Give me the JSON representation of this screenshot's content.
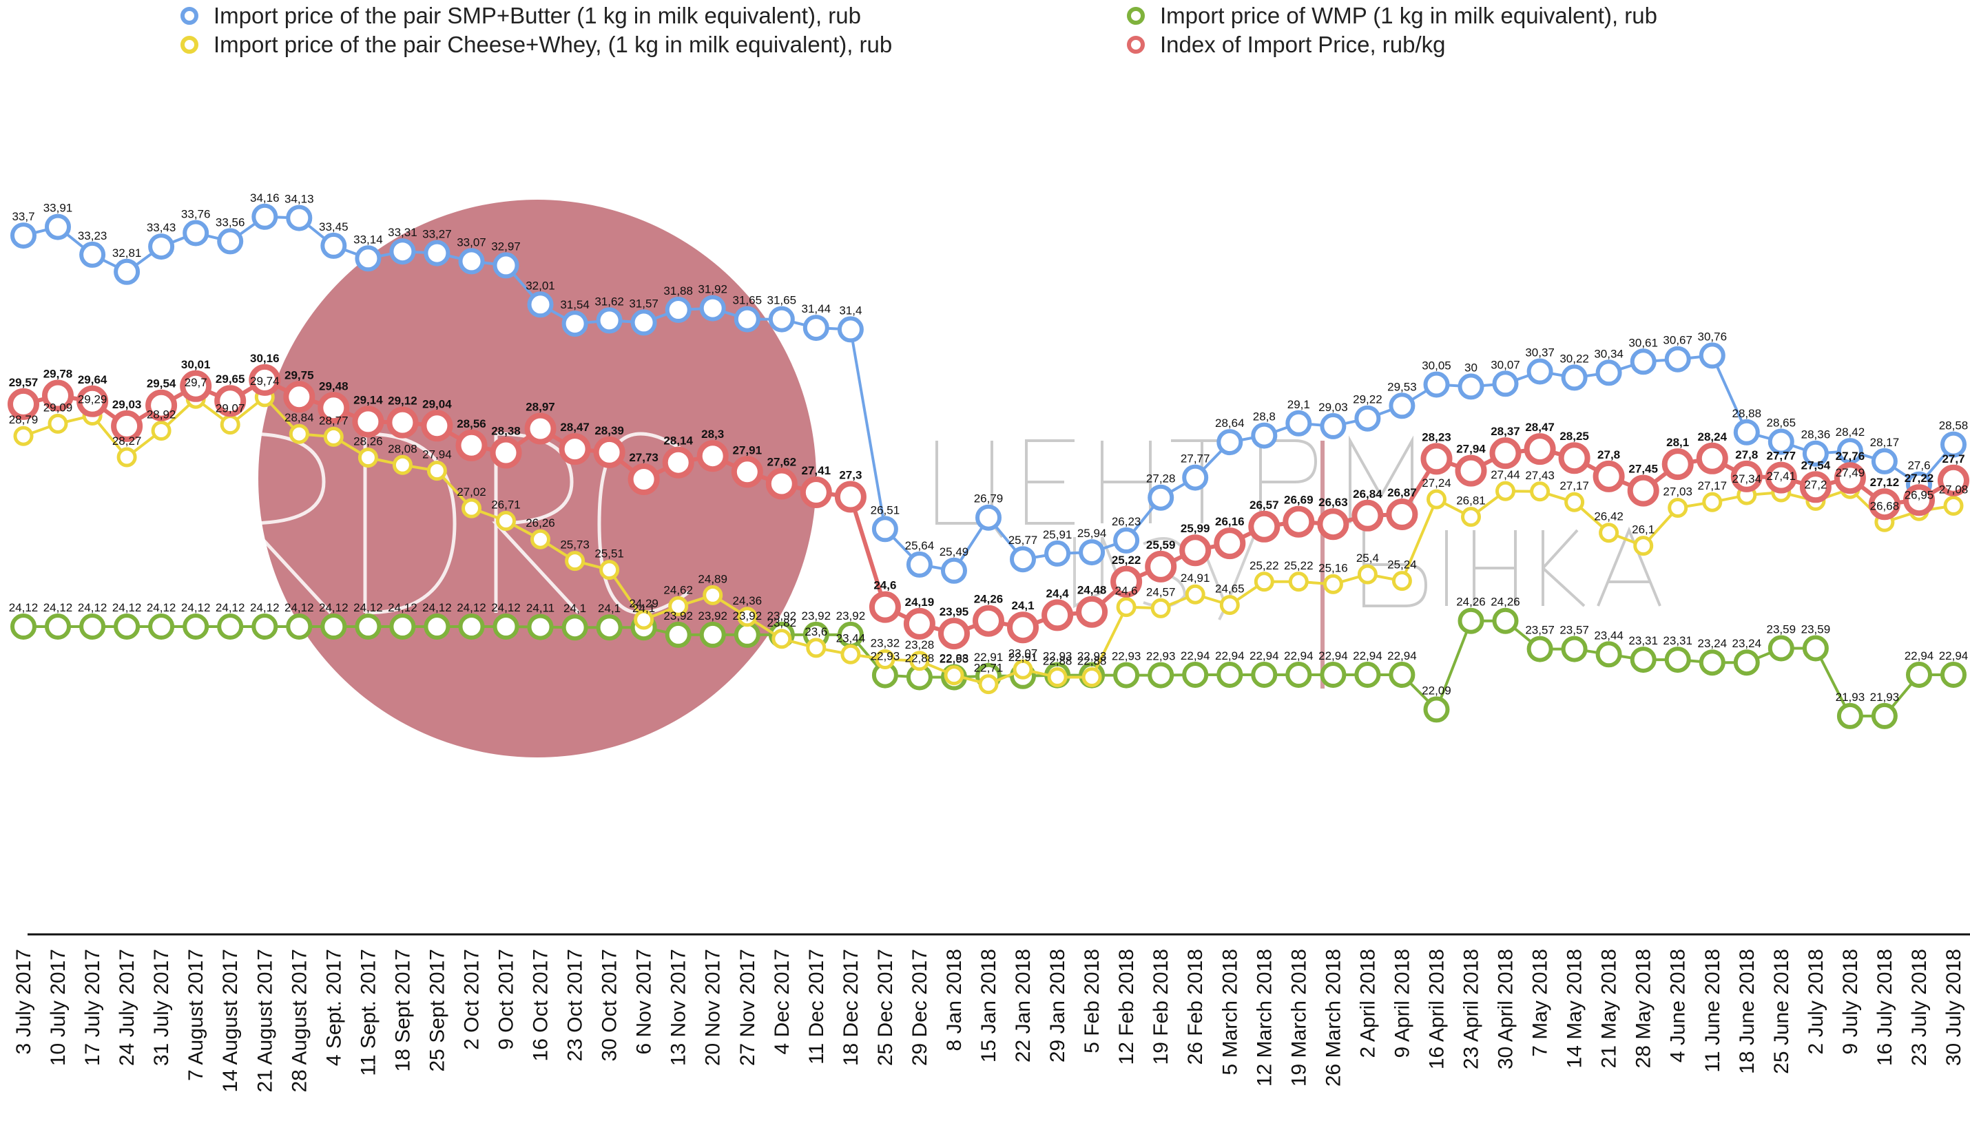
{
  "chart_data": {
    "type": "line",
    "legend": [
      {
        "key": "smp",
        "label": "Import price of the pair SMP+Butter (1 kg in milk equivalent), rub"
      },
      {
        "key": "cheese",
        "label": "Import price of the pair Cheese+Whey,  (1 kg in milk equivalent), rub"
      },
      {
        "key": "wmp",
        "label": "Import price of WMP (1 kg in milk equivalent), rub"
      },
      {
        "key": "index",
        "label": "Index of Import Price, rub/kg"
      }
    ],
    "legend_position": "top",
    "colors": {
      "smp": "#6fa3e8",
      "cheese": "#ecd63b",
      "wmp": "#7fb23c",
      "index": "#e06b6b"
    },
    "x": [
      "3 July 2017",
      "10 July 2017",
      "17 July 2017",
      "24 July 2017",
      "31 July 2017",
      "7 August 2017",
      "14 August 2017",
      "21 August 2017",
      "28 August 2017",
      "4 Sept. 2017",
      "11 Sept. 2017",
      "18 Sept 2017",
      "25 Sept 2017",
      "2 Oct 2017",
      "9 Oct 2017",
      "16 Oct 2017",
      "23 Oct 2017",
      "30 Oct 2017",
      "6 Nov 2017",
      "13 Nov 2017",
      "20 Nov 2017",
      "27 Nov 2017",
      "4 Dec 2017",
      "11 Dec 2017",
      "18 Dec 2017",
      "25 Dec 2017",
      "29 Dec 2017",
      "8 Jan 2018",
      "15 Jan 2018",
      "22 Jan 2018",
      "29 Jan 2018",
      "5 Feb 2018",
      "12 Feb 2018",
      "19 Feb 2018",
      "26 Feb 2018",
      "5 March 2018",
      "12 March 2018",
      "19 March 2018",
      "26 March 2018",
      "2 April 2018",
      "9 April 2018",
      "16 April 2018",
      "23 April 2018",
      "30 April 2018",
      "7 May 2018",
      "14 May 2018",
      "21 May 2018",
      "28 May 2018",
      "4 June 2018",
      "11 June 2018",
      "18 June 2018",
      "25 June 2018",
      "2 July 2018",
      "9 July 2018",
      "16 July 2018",
      "23 July 2018",
      "30 July 2018"
    ],
    "series": [
      {
        "key": "smp",
        "name": "Import price of the pair SMP+Butter (1 kg in milk equivalent), rub",
        "values": [
          33.7,
          33.91,
          33.23,
          32.81,
          33.43,
          33.76,
          33.56,
          34.16,
          34.13,
          33.45,
          33.14,
          33.31,
          33.27,
          33.07,
          32.97,
          32.01,
          31.54,
          31.62,
          31.57,
          31.88,
          31.92,
          31.65,
          31.65,
          31.44,
          31.4,
          26.51,
          25.64,
          25.49,
          26.79,
          25.77,
          25.91,
          25.94,
          26.23,
          27.28,
          27.77,
          28.64,
          28.8,
          29.1,
          29.03,
          29.22,
          29.53,
          30.05,
          30,
          30.07,
          30.37,
          30.22,
          30.34,
          30.61,
          30.67,
          30.76,
          28.88,
          28.65,
          28.36,
          28.42,
          28.17,
          27.6,
          28.58
        ],
        "labels": [
          "33,7",
          "33,91",
          "33,23",
          "32,81",
          "33,43",
          "33,76",
          "33,56",
          "34,16",
          "34,13",
          "33,45",
          "33,14",
          "33,31",
          "33,27",
          "33,07",
          "32,97",
          "32,01",
          "31,54",
          "31,62",
          "31,57",
          "31,88",
          "31,92",
          "31,65",
          "31,65",
          "31,44",
          "31,4",
          "26,51",
          "25,64",
          "25,49",
          "26,79",
          "25,77",
          "25,91",
          "25,94",
          "26,23",
          "27,28",
          "27,77",
          "28,64",
          "28,8",
          "29,1",
          "29,03",
          "29,22",
          "29,53",
          "30,05",
          "30",
          "30,07",
          "30,37",
          "30,22",
          "30,34",
          "30,61",
          "30,67",
          "30,76",
          "28,88",
          "28,65",
          "28,36",
          "28,42",
          "28,17",
          "27,6",
          "28,58"
        ]
      },
      {
        "key": "cheese",
        "name": "Import price of the pair Cheese+Whey,  (1 kg in milk equivalent), rub",
        "values": [
          28.79,
          29.09,
          29.29,
          28.27,
          28.92,
          29.7,
          29.07,
          29.74,
          28.84,
          28.77,
          28.26,
          28.08,
          27.94,
          27.02,
          26.71,
          26.26,
          25.73,
          25.51,
          24.29,
          24.62,
          24.89,
          24.36,
          23.82,
          23.6,
          23.44,
          23.32,
          23.28,
          22.93,
          22.71,
          23.07,
          22.88,
          22.88,
          24.6,
          24.57,
          24.91,
          24.65,
          25.22,
          25.22,
          25.16,
          25.4,
          25.24,
          27.24,
          26.81,
          27.44,
          27.43,
          27.17,
          26.42,
          26.1,
          27.03,
          27.17,
          27.34,
          27.41,
          27.2,
          27.49,
          26.68,
          26.95,
          27.08
        ],
        "labels": [
          "28,79",
          "29,09",
          "29,29",
          "28,27",
          "28,92",
          "29,7",
          "29,07",
          "29,74",
          "28,84",
          "28,77",
          "28,26",
          "28,08",
          "27,94",
          "27,02",
          "26,71",
          "26,26",
          "25,73",
          "25,51",
          "24,29",
          "24,62",
          "24,89",
          "24,36",
          "23,82",
          "23,6",
          "23,44",
          "23,32",
          "23,28",
          "22,93",
          "22,71",
          "23,07",
          "22,88",
          "22,88",
          "24,6",
          "24,57",
          "24,91",
          "24,65",
          "25,22",
          "25,22",
          "25,16",
          "25,4",
          "25,24",
          "27,24",
          "26,81",
          "27,44",
          "27,43",
          "27,17",
          "26,42",
          "26,1",
          "27,03",
          "27,17",
          "27,34",
          "27,41",
          "27,2",
          "27,49",
          "26,68",
          "26,95",
          "27,08"
        ]
      },
      {
        "key": "wmp",
        "name": "Import price of WMP (1 kg in milk equivalent), rub",
        "values": [
          24.12,
          24.12,
          24.12,
          24.12,
          24.12,
          24.12,
          24.12,
          24.12,
          24.12,
          24.12,
          24.12,
          24.12,
          24.12,
          24.12,
          24.12,
          24.11,
          24.1,
          24.1,
          24.1,
          23.92,
          23.92,
          23.92,
          23.92,
          23.92,
          23.92,
          22.93,
          22.88,
          22.88,
          22.91,
          22.91,
          22.93,
          22.93,
          22.93,
          22.93,
          22.94,
          22.94,
          22.94,
          22.94,
          22.94,
          22.94,
          22.94,
          22.09,
          24.26,
          24.26,
          23.57,
          23.57,
          23.44,
          23.31,
          23.31,
          23.24,
          23.24,
          23.59,
          23.59,
          21.93,
          21.93,
          22.94,
          22.94
        ],
        "labels": [
          "24,12",
          "24,12",
          "24,12",
          "24,12",
          "24,12",
          "24,12",
          "24,12",
          "24,12",
          "24,12",
          "24,12",
          "24,12",
          "24,12",
          "24,12",
          "24,12",
          "24,12",
          "24,11",
          "24,1",
          "24,1",
          "24,1",
          "23,92",
          "23,92",
          "23,92",
          "23,92",
          "23,92",
          "23,92",
          "22,93",
          "22,88",
          "22,88",
          "22,91",
          "22,91",
          "22,93",
          "22,93",
          "22,93",
          "22,93",
          "22,94",
          "22,94",
          "22,94",
          "22,94",
          "22,94",
          "22,94",
          "22,94",
          "22,09",
          "24,26",
          "24,26",
          "23,57",
          "23,57",
          "23,44",
          "23,31",
          "23,31",
          "23,24",
          "23,24",
          "23,59",
          "23,59",
          "21,93",
          "21,93",
          "22,94",
          "22,94"
        ]
      },
      {
        "key": "index",
        "name": "Index of Import Price, rub/kg",
        "values": [
          29.57,
          29.78,
          29.64,
          29.03,
          29.54,
          30.01,
          29.65,
          30.16,
          29.75,
          29.48,
          29.14,
          29.12,
          29.04,
          28.56,
          28.38,
          28.97,
          28.47,
          28.39,
          27.73,
          28.14,
          28.3,
          27.91,
          27.62,
          27.41,
          27.3,
          24.6,
          24.19,
          23.95,
          24.26,
          24.1,
          24.4,
          24.48,
          25.22,
          25.59,
          25.99,
          26.16,
          26.57,
          26.69,
          26.63,
          26.84,
          26.87,
          28.23,
          27.94,
          28.37,
          28.47,
          28.25,
          27.8,
          27.45,
          28.1,
          28.24,
          27.8,
          27.77,
          27.54,
          27.76,
          27.12,
          27.22,
          27.7
        ],
        "labels": [
          "29,57",
          "29,78",
          "29,64",
          "29,03",
          "29,54",
          "30,01",
          "29,65",
          "30,16",
          "29,75",
          "29,48",
          "29,14",
          "29,12",
          "29,04",
          "28,56",
          "28,38",
          "28,97",
          "28,47",
          "28,39",
          "27,73",
          "28,14",
          "28,3",
          "27,91",
          "27,62",
          "27,41",
          "27,3",
          "24,6",
          "24,19",
          "23,95",
          "24,26",
          "24,1",
          "24,4",
          "24,48",
          "25,22",
          "25,59",
          "25,99",
          "26,16",
          "26,57",
          "26,69",
          "26,63",
          "26,84",
          "26,87",
          "28,23",
          "27,94",
          "28,37",
          "28,47",
          "28,25",
          "27,8",
          "27,45",
          "28,1",
          "28,24",
          "27,8",
          "27,77",
          "27,54",
          "27,76",
          "27,12",
          "27,22",
          "27,7"
        ]
      }
    ],
    "ylim": [
      21,
      35
    ],
    "grid": false
  }
}
